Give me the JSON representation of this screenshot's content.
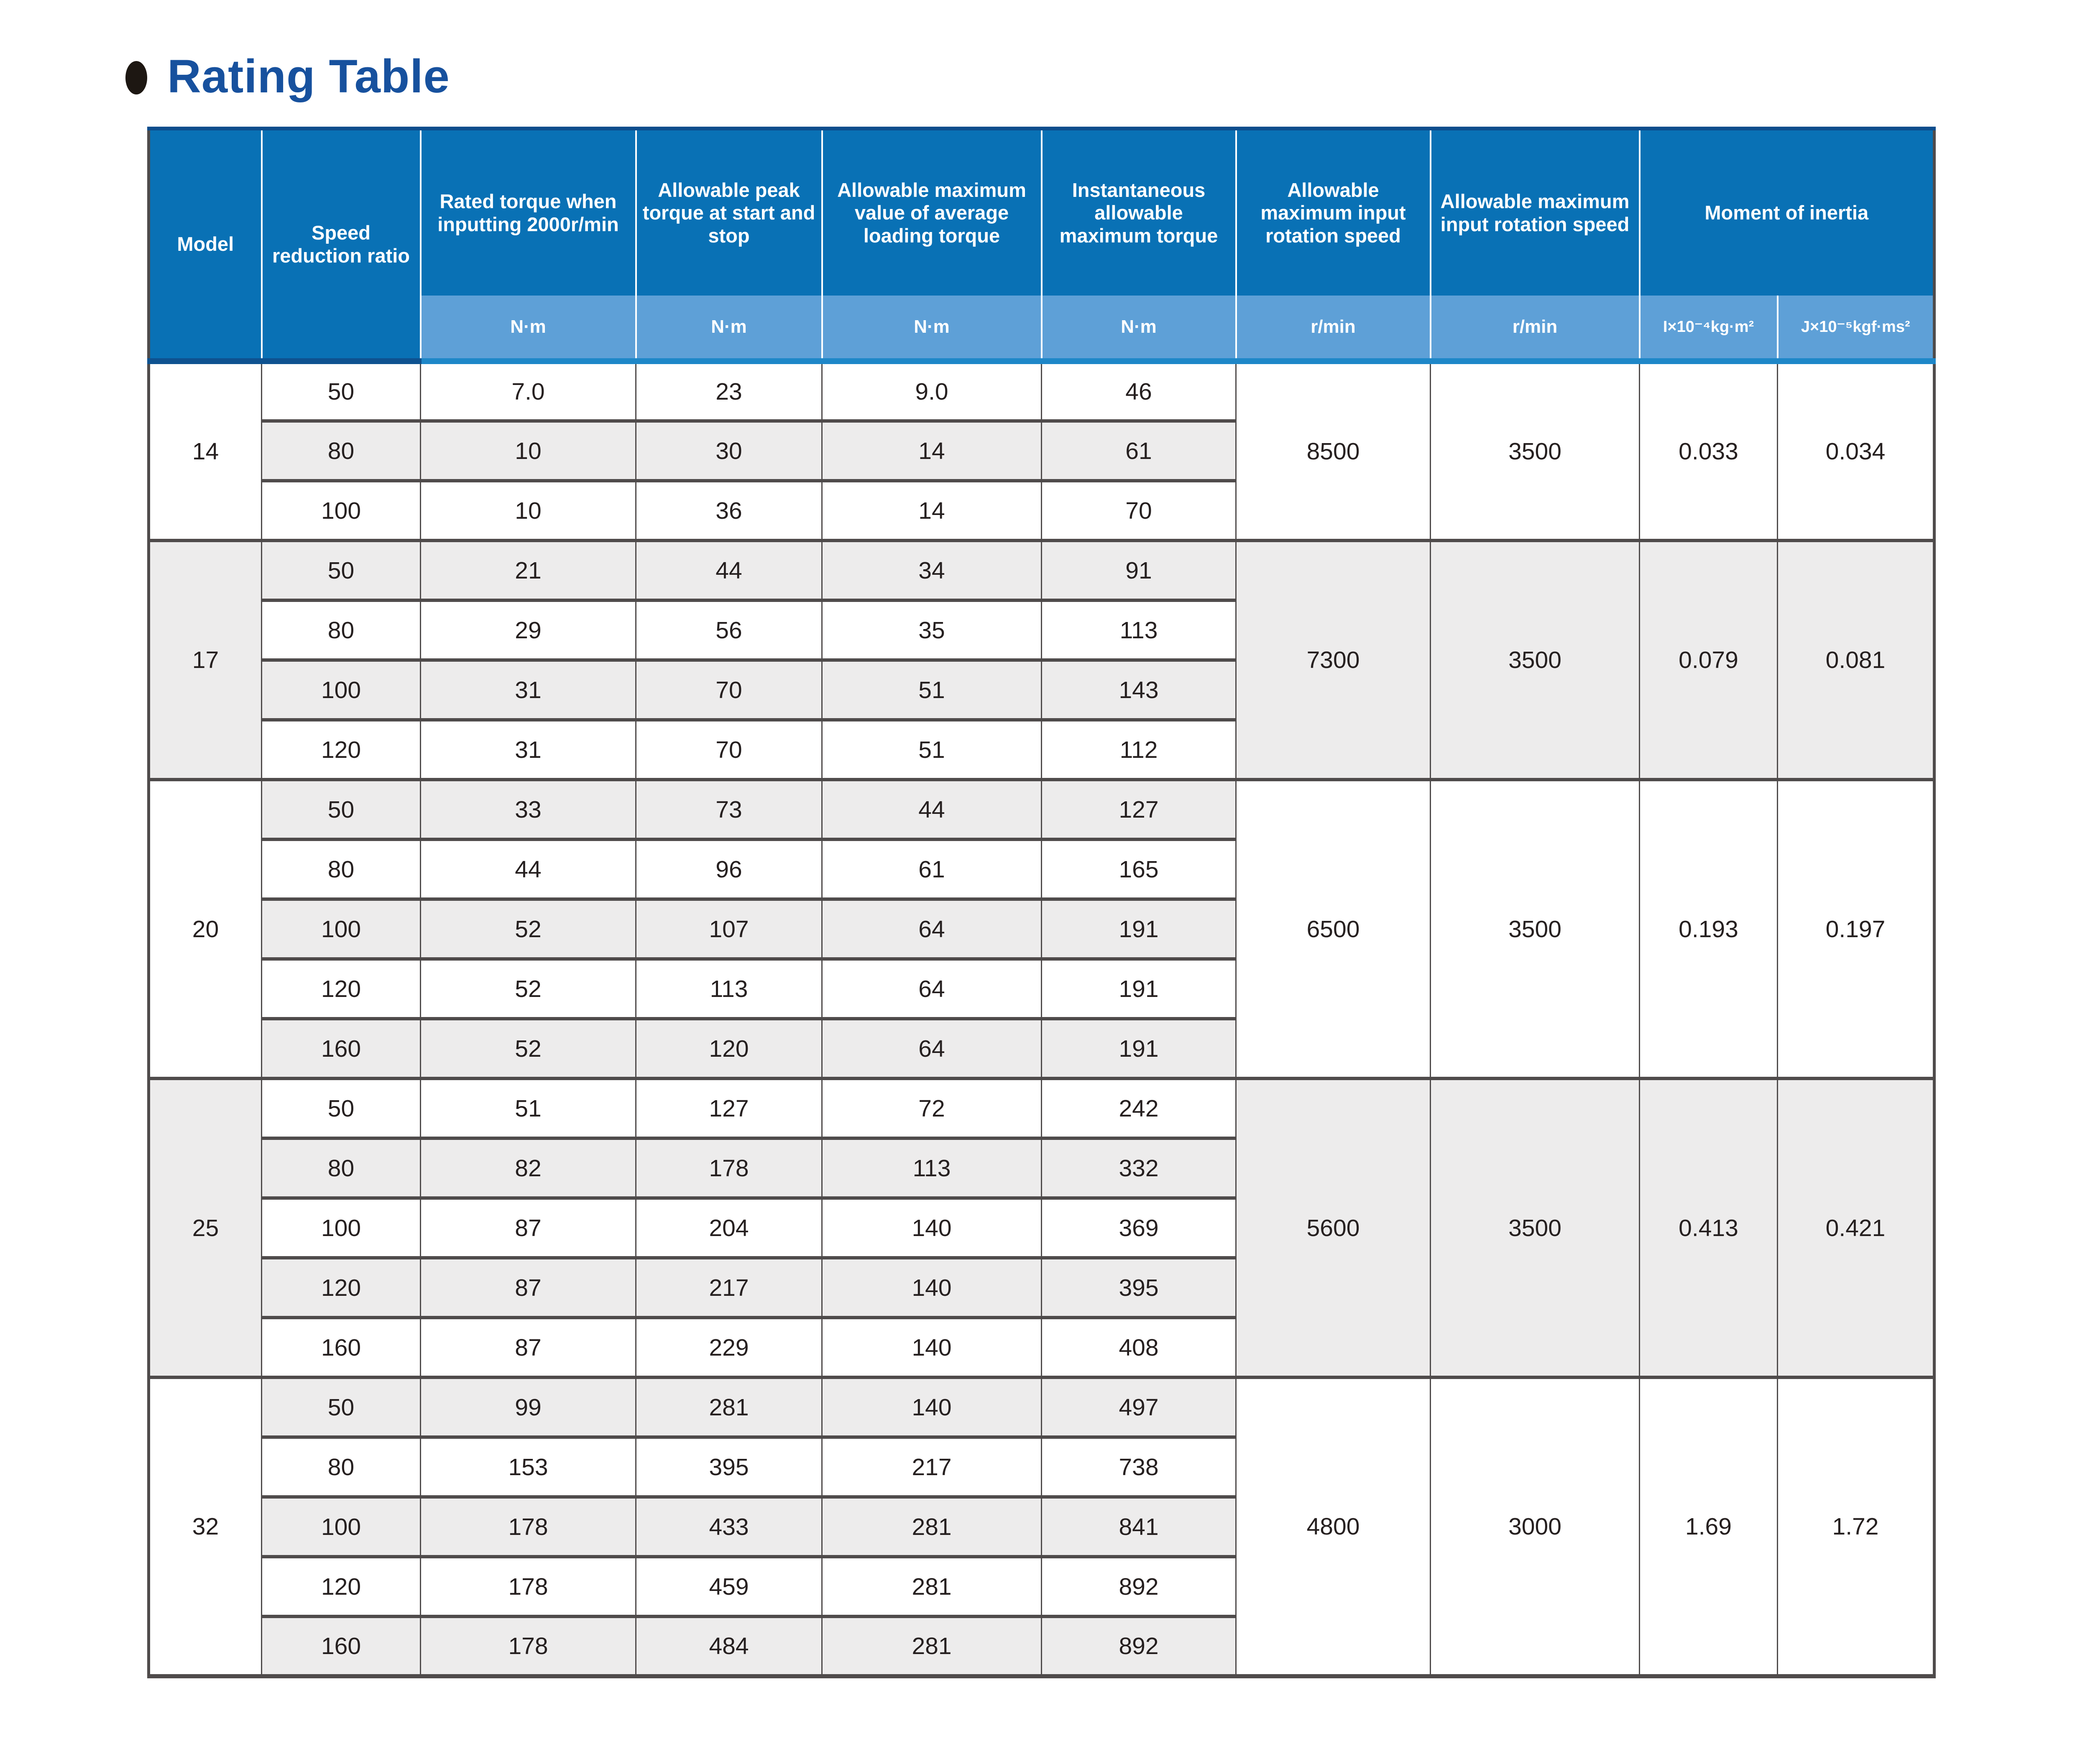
{
  "title": {
    "bullet_icon": "dot",
    "text": "Rating Table"
  },
  "colors": {
    "header_blue": "#0971b5",
    "header_light_blue": "#5ea0d7",
    "subheader_strip_blue": "#1e87c8",
    "table_top_navy": "#0d4d8d",
    "row_stripe_gray": "#edecec",
    "grid_dark": "#4f4b4b",
    "title_blue": "#17519e"
  },
  "table": {
    "header": {
      "model": "Model",
      "speed_ratio": "Speed reduction ratio",
      "columns": [
        {
          "label": "Rated torque when inputting 2000r/min",
          "unit": "N·m"
        },
        {
          "label": "Allowable peak torque at start and stop",
          "unit": "N·m"
        },
        {
          "label": "Allowable maximum value of average loading torque",
          "unit": "N·m"
        },
        {
          "label": "Instantaneous allowable maximum torque",
          "unit": "N·m"
        },
        {
          "label": "Allowable maximum input rotation speed",
          "unit": "r/min"
        },
        {
          "label": "Allowable maximum input rotation speed",
          "unit": "r/min"
        }
      ],
      "moment_of_inertia": "Moment of inertia",
      "inertia_units": [
        "I×10⁻⁴kg·m²",
        "J×10⁻⁵kgf·ms²"
      ]
    },
    "blocks": [
      {
        "model": "14",
        "bg": "white",
        "rows": [
          {
            "ratio": "50",
            "values": [
              "7.0",
              "23",
              "9.0",
              "46"
            ],
            "stripe": "white"
          },
          {
            "ratio": "80",
            "values": [
              "10",
              "30",
              "14",
              "61"
            ],
            "stripe": "gray"
          },
          {
            "ratio": "100",
            "values": [
              "10",
              "36",
              "14",
              "70"
            ],
            "stripe": "white"
          }
        ],
        "merged": [
          "8500",
          "3500",
          "0.033",
          "0.034"
        ]
      },
      {
        "model": "17",
        "bg": "gray",
        "rows": [
          {
            "ratio": "50",
            "values": [
              "21",
              "44",
              "34",
              "91"
            ],
            "stripe": "gray"
          },
          {
            "ratio": "80",
            "values": [
              "29",
              "56",
              "35",
              "113"
            ],
            "stripe": "white"
          },
          {
            "ratio": "100",
            "values": [
              "31",
              "70",
              "51",
              "143"
            ],
            "stripe": "gray"
          },
          {
            "ratio": "120",
            "values": [
              "31",
              "70",
              "51",
              "112"
            ],
            "stripe": "white"
          }
        ],
        "merged": [
          "7300",
          "3500",
          "0.079",
          "0.081"
        ]
      },
      {
        "model": "20",
        "bg": "white",
        "rows": [
          {
            "ratio": "50",
            "values": [
              "33",
              "73",
              "44",
              "127"
            ],
            "stripe": "gray"
          },
          {
            "ratio": "80",
            "values": [
              "44",
              "96",
              "61",
              "165"
            ],
            "stripe": "white"
          },
          {
            "ratio": "100",
            "values": [
              "52",
              "107",
              "64",
              "191"
            ],
            "stripe": "gray"
          },
          {
            "ratio": "120",
            "values": [
              "52",
              "113",
              "64",
              "191"
            ],
            "stripe": "white"
          },
          {
            "ratio": "160",
            "values": [
              "52",
              "120",
              "64",
              "191"
            ],
            "stripe": "gray"
          }
        ],
        "merged": [
          "6500",
          "3500",
          "0.193",
          "0.197"
        ]
      },
      {
        "model": "25",
        "bg": "gray",
        "rows": [
          {
            "ratio": "50",
            "values": [
              "51",
              "127",
              "72",
              "242"
            ],
            "stripe": "white"
          },
          {
            "ratio": "80",
            "values": [
              "82",
              "178",
              "113",
              "332"
            ],
            "stripe": "gray"
          },
          {
            "ratio": "100",
            "values": [
              "87",
              "204",
              "140",
              "369"
            ],
            "stripe": "white"
          },
          {
            "ratio": "120",
            "values": [
              "87",
              "217",
              "140",
              "395"
            ],
            "stripe": "gray"
          },
          {
            "ratio": "160",
            "values": [
              "87",
              "229",
              "140",
              "408"
            ],
            "stripe": "white"
          }
        ],
        "merged": [
          "5600",
          "3500",
          "0.413",
          "0.421"
        ]
      },
      {
        "model": "32",
        "bg": "white",
        "rows": [
          {
            "ratio": "50",
            "values": [
              "99",
              "281",
              "140",
              "497"
            ],
            "stripe": "gray"
          },
          {
            "ratio": "80",
            "values": [
              "153",
              "395",
              "217",
              "738"
            ],
            "stripe": "white"
          },
          {
            "ratio": "100",
            "values": [
              "178",
              "433",
              "281",
              "841"
            ],
            "stripe": "gray"
          },
          {
            "ratio": "120",
            "values": [
              "178",
              "459",
              "281",
              "892"
            ],
            "stripe": "white"
          },
          {
            "ratio": "160",
            "values": [
              "178",
              "484",
              "281",
              "892"
            ],
            "stripe": "gray"
          }
        ],
        "merged": [
          "4800",
          "3000",
          "1.69",
          "1.72"
        ]
      }
    ]
  }
}
